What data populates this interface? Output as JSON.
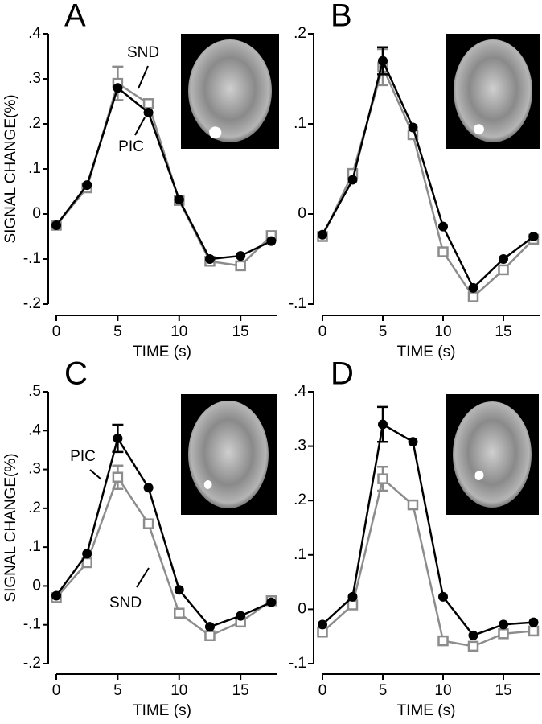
{
  "chart_data": [
    {
      "type": "line",
      "label": "A",
      "ylabel": "SIGNAL CHANGE(%)",
      "xlabel": "TIME (s)",
      "x": [
        0,
        2.5,
        5,
        7.5,
        10,
        12.5,
        15,
        17.5
      ],
      "xlim": [
        0,
        18
      ],
      "xticks": [
        0,
        5,
        10,
        15
      ],
      "ylim": [
        -0.2,
        0.4
      ],
      "yticks": [
        {
          "value": -0.2,
          "label": "-.2"
        },
        {
          "value": -0.1,
          "label": "-.1"
        },
        0,
        {
          "value": 0.1,
          "label": ".1"
        },
        {
          "value": 0.2,
          "label": ".2"
        },
        {
          "value": 0.3,
          "label": ".3"
        },
        {
          "value": 0.4,
          "label": ".4"
        }
      ],
      "series": [
        {
          "name": "SND",
          "color": "#8c8c8c",
          "marker": "square",
          "values": [
            -0.025,
            0.058,
            0.29,
            0.245,
            0.03,
            -0.105,
            -0.115,
            -0.048
          ],
          "errors": [
            null,
            null,
            0.037,
            null,
            null,
            null,
            null,
            null
          ]
        },
        {
          "name": "PIC",
          "color": "#000000",
          "marker": "circle",
          "values": [
            -0.025,
            0.064,
            0.28,
            0.225,
            0.032,
            -0.1,
            -0.093,
            -0.06
          ],
          "errors": [
            null,
            null,
            null,
            null,
            null,
            null,
            null,
            null
          ]
        }
      ]
    },
    {
      "type": "line",
      "label": "B",
      "xlabel": "TIME (s)",
      "x": [
        0,
        2.5,
        5,
        7.5,
        10,
        12.5,
        15,
        17.5
      ],
      "xlim": [
        0,
        18
      ],
      "xticks": [
        0,
        5,
        10,
        15
      ],
      "ylim": [
        -0.1,
        0.2
      ],
      "yticks": [
        {
          "value": -0.1,
          "label": "-.1"
        },
        0,
        {
          "value": 0.1,
          "label": ".1"
        },
        {
          "value": 0.2,
          "label": ".2"
        }
      ],
      "series": [
        {
          "color": "#8c8c8c",
          "marker": "square",
          "values": [
            -0.025,
            0.045,
            0.163,
            0.088,
            -0.042,
            -0.092,
            -0.062,
            -0.028
          ],
          "errors": [
            null,
            null,
            0.02,
            null,
            null,
            null,
            null,
            null
          ]
        },
        {
          "color": "#000000",
          "marker": "circle",
          "values": [
            -0.023,
            0.038,
            0.17,
            0.096,
            -0.014,
            -0.082,
            -0.05,
            -0.025
          ],
          "errors": [
            null,
            null,
            0.015,
            null,
            null,
            null,
            null,
            null
          ]
        }
      ]
    },
    {
      "type": "line",
      "label": "C",
      "ylabel": "SIGNAL CHANGE(%)",
      "xlabel": "TIME (s)",
      "x": [
        0,
        2.5,
        5,
        7.5,
        10,
        12.5,
        15,
        17.5
      ],
      "xlim": [
        0,
        18
      ],
      "xticks": [
        0,
        5,
        10,
        15
      ],
      "ylim": [
        -0.2,
        0.5
      ],
      "yticks": [
        {
          "value": -0.2,
          "label": "-.2"
        },
        {
          "value": -0.1,
          "label": "-.1"
        },
        0,
        {
          "value": 0.1,
          "label": ".1"
        },
        {
          "value": 0.2,
          "label": ".2"
        },
        {
          "value": 0.3,
          "label": ".3"
        },
        {
          "value": 0.4,
          "label": ".4"
        },
        {
          "value": 0.5,
          "label": ".5"
        }
      ],
      "series": [
        {
          "name": "SND",
          "color": "#8c8c8c",
          "marker": "square",
          "values": [
            -0.03,
            0.06,
            0.28,
            0.16,
            -0.07,
            -0.128,
            -0.093,
            -0.038
          ],
          "errors": [
            null,
            null,
            0.03,
            null,
            null,
            null,
            null,
            null
          ]
        },
        {
          "name": "PIC",
          "color": "#000000",
          "marker": "circle",
          "values": [
            -0.025,
            0.083,
            0.38,
            0.253,
            -0.01,
            -0.105,
            -0.077,
            -0.042
          ],
          "errors": [
            null,
            null,
            0.035,
            null,
            null,
            null,
            null,
            null
          ]
        }
      ]
    },
    {
      "type": "line",
      "label": "D",
      "xlabel": "TIME (s)",
      "x": [
        0,
        2.5,
        5,
        7.5,
        10,
        12.5,
        15,
        17.5
      ],
      "xlim": [
        0,
        18
      ],
      "xticks": [
        0,
        5,
        10,
        15
      ],
      "ylim": [
        -0.1,
        0.4
      ],
      "yticks": [
        {
          "value": -0.1,
          "label": "-.1"
        },
        0,
        {
          "value": 0.1,
          "label": ".1"
        },
        {
          "value": 0.2,
          "label": ".2"
        },
        {
          "value": 0.3,
          "label": ".3"
        },
        {
          "value": 0.4,
          "label": ".4"
        }
      ],
      "series": [
        {
          "color": "#8c8c8c",
          "marker": "square",
          "values": [
            -0.042,
            0.008,
            0.24,
            0.192,
            -0.058,
            -0.068,
            -0.045,
            -0.04
          ],
          "errors": [
            null,
            null,
            0.022,
            null,
            null,
            null,
            null,
            null
          ]
        },
        {
          "color": "#000000",
          "marker": "circle",
          "values": [
            -0.028,
            0.023,
            0.34,
            0.308,
            0.023,
            -0.048,
            -0.028,
            -0.024
          ],
          "errors": [
            null,
            null,
            0.032,
            null,
            null,
            null,
            null,
            null
          ]
        }
      ]
    }
  ]
}
